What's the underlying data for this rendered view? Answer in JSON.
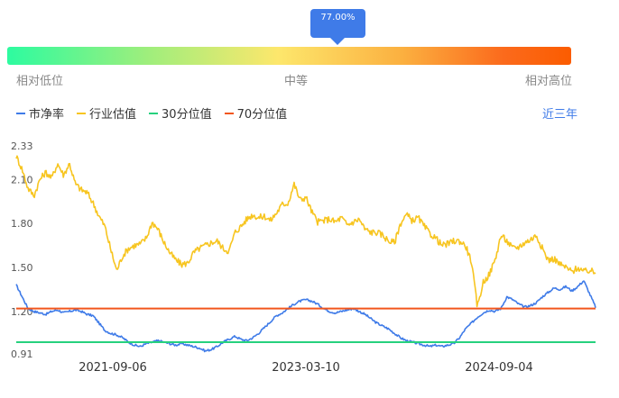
{
  "indicator": {
    "tooltip": "77.00%",
    "low_label": "相对低位",
    "mid_label": "中等",
    "high_label": "相对高位"
  },
  "range_label": "近三年",
  "chart_data": {
    "type": "line",
    "title": "",
    "xlabel": "",
    "ylabel": "",
    "x_ticks": [
      "2021-09-06",
      "2023-03-10",
      "2024-09-04"
    ],
    "y_ticks": [
      "2.33",
      "2.10",
      "1.80",
      "1.50",
      "1.20",
      "0.91"
    ],
    "ylim": [
      0.91,
      2.33
    ],
    "legend_position": "top-left",
    "series": [
      {
        "name": "市净率",
        "color": "#3f7be8",
        "values": [
          1.38,
          1.3,
          1.22,
          1.2,
          1.19,
          1.18,
          1.2,
          1.21,
          1.19,
          1.2,
          1.21,
          1.2,
          1.18,
          1.17,
          1.12,
          1.07,
          1.05,
          1.04,
          1.02,
          0.99,
          0.97,
          0.96,
          0.98,
          0.99,
          1.0,
          0.99,
          0.98,
          0.97,
          0.98,
          0.97,
          0.96,
          0.95,
          0.93,
          0.94,
          0.96,
          0.99,
          1.01,
          1.03,
          1.01,
          1.0,
          1.02,
          1.05,
          1.09,
          1.13,
          1.17,
          1.19,
          1.22,
          1.25,
          1.27,
          1.28,
          1.27,
          1.25,
          1.22,
          1.2,
          1.19,
          1.2,
          1.21,
          1.22,
          1.2,
          1.18,
          1.15,
          1.12,
          1.1,
          1.08,
          1.05,
          1.02,
          1.0,
          0.99,
          0.98,
          0.97,
          0.96,
          0.97,
          0.96,
          0.97,
          0.98,
          1.02,
          1.08,
          1.12,
          1.16,
          1.19,
          1.21,
          1.2,
          1.22,
          1.3,
          1.28,
          1.25,
          1.23,
          1.24,
          1.26,
          1.3,
          1.33,
          1.36,
          1.35,
          1.37,
          1.34,
          1.37,
          1.41,
          1.32,
          1.23
        ]
      },
      {
        "name": "行业估值",
        "color": "#f7c520",
        "values": [
          2.26,
          2.17,
          2.04,
          1.99,
          2.1,
          2.15,
          2.11,
          2.21,
          2.13,
          2.21,
          2.07,
          2.03,
          2.01,
          1.94,
          1.85,
          1.78,
          1.62,
          1.48,
          1.58,
          1.63,
          1.65,
          1.66,
          1.7,
          1.81,
          1.76,
          1.67,
          1.6,
          1.55,
          1.52,
          1.53,
          1.6,
          1.63,
          1.65,
          1.67,
          1.68,
          1.63,
          1.61,
          1.74,
          1.78,
          1.83,
          1.86,
          1.84,
          1.85,
          1.82,
          1.87,
          1.93,
          1.94,
          2.07,
          1.96,
          1.98,
          1.88,
          1.81,
          1.82,
          1.83,
          1.81,
          1.84,
          1.79,
          1.81,
          1.83,
          1.76,
          1.74,
          1.74,
          1.72,
          1.68,
          1.67,
          1.8,
          1.86,
          1.82,
          1.84,
          1.78,
          1.73,
          1.7,
          1.65,
          1.66,
          1.68,
          1.68,
          1.65,
          1.54,
          1.23,
          1.4,
          1.45,
          1.55,
          1.72,
          1.68,
          1.63,
          1.64,
          1.67,
          1.69,
          1.72,
          1.63,
          1.55,
          1.56,
          1.52,
          1.5,
          1.47,
          1.5,
          1.47,
          1.48,
          1.46
        ]
      },
      {
        "name": "30分位值",
        "color": "#26d17e",
        "values": [
          0.99
        ]
      },
      {
        "name": "70分位值",
        "color": "#f2561d",
        "values": [
          1.22
        ]
      }
    ]
  }
}
